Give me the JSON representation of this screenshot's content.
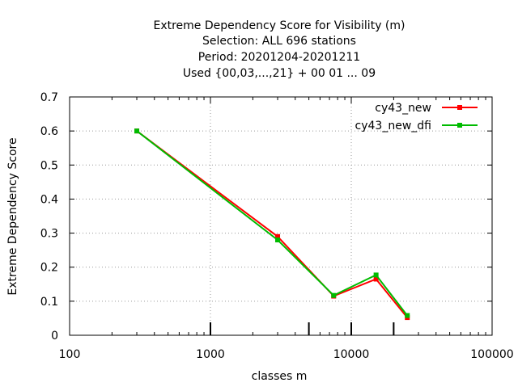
{
  "chart_data": {
    "type": "line",
    "title_lines": [
      "Extreme Dependency Score  for Visibility (m)",
      "Selection: ALL    696 stations",
      "Period: 20201204-20201211",
      "Used {00,03,...,21} + 00 01 ... 09"
    ],
    "xlabel": "classes m",
    "ylabel": "Extreme Dependency Score",
    "x_scale": "log",
    "xlim": [
      100,
      100000
    ],
    "ylim": [
      0,
      0.7
    ],
    "x_ticks": [
      100,
      1000,
      10000,
      100000
    ],
    "x_tick_labels": [
      "100",
      "1000",
      "10000",
      "100000"
    ],
    "y_ticks": [
      0,
      0.1,
      0.2,
      0.3,
      0.4,
      0.5,
      0.6,
      0.7
    ],
    "y_tick_labels": [
      "0",
      "0.1",
      "0.2",
      "0.3",
      "0.4",
      "0.5",
      "0.6",
      "0.7"
    ],
    "class_marks": [
      1000,
      5000,
      10000,
      20000
    ],
    "grid": true,
    "legend_position": "top-right",
    "series": [
      {
        "name": "cy43_new",
        "color": "#ff0000",
        "x": [
          300,
          3000,
          7500,
          15000,
          25000
        ],
        "y": [
          0.6,
          0.29,
          0.115,
          0.165,
          0.052
        ]
      },
      {
        "name": "cy43_new_dfi",
        "color": "#00bb00",
        "x": [
          300,
          3000,
          7500,
          15000,
          25000
        ],
        "y": [
          0.6,
          0.28,
          0.117,
          0.177,
          0.058
        ]
      }
    ]
  }
}
